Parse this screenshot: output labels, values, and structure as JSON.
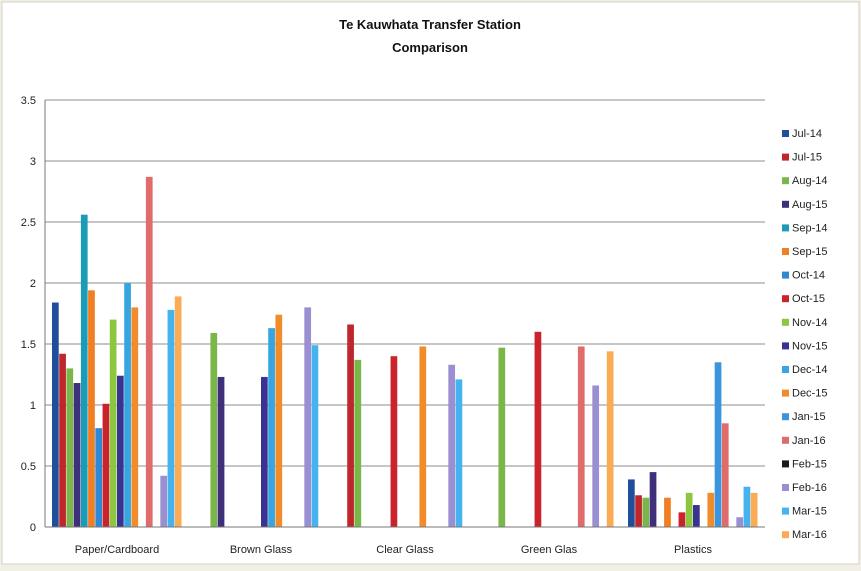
{
  "chart_data": {
    "type": "bar",
    "title": "Te Kauwhata Transfer Station",
    "subtitle": "Comparison",
    "xlabel": "",
    "ylabel": "",
    "ylim": [
      0,
      3.5
    ],
    "yticks": [
      "0",
      "0.5",
      "1",
      "1.5",
      "2",
      "2.5",
      "3",
      "3.5"
    ],
    "ytick_values": [
      0,
      0.5,
      1,
      1.5,
      2,
      2.5,
      3,
      3.5
    ],
    "grid": true,
    "legend_position": "right",
    "categories": [
      "Paper/Cardboard",
      "Brown Glass",
      "Clear Glass",
      "Green Glas",
      "Plastics"
    ],
    "series": [
      {
        "name": "Jul-14",
        "color": "#1f4e9a",
        "values": [
          1.84,
          0,
          0,
          0,
          0.39
        ]
      },
      {
        "name": "Jul-15",
        "color": "#c0272d",
        "values": [
          1.42,
          0,
          1.66,
          0,
          0.26
        ]
      },
      {
        "name": "Aug-14",
        "color": "#7ab648",
        "values": [
          1.3,
          1.59,
          1.37,
          1.47,
          0.24
        ]
      },
      {
        "name": "Aug-15",
        "color": "#3d2f7a",
        "values": [
          1.18,
          1.23,
          0,
          0,
          0.45
        ]
      },
      {
        "name": "Sep-14",
        "color": "#1b9bb8",
        "values": [
          2.56,
          0,
          0,
          0,
          0
        ]
      },
      {
        "name": "Sep-15",
        "color": "#f07f22",
        "values": [
          1.94,
          0,
          0,
          0,
          0.24
        ]
      },
      {
        "name": "Oct-14",
        "color": "#2d88d6",
        "values": [
          0.81,
          0,
          0,
          0,
          0
        ]
      },
      {
        "name": "Oct-15",
        "color": "#c9242b",
        "values": [
          1.01,
          0,
          1.4,
          1.6,
          0.12
        ]
      },
      {
        "name": "Nov-14",
        "color": "#8dc63f",
        "values": [
          1.7,
          0,
          0,
          0,
          0.28
        ]
      },
      {
        "name": "Nov-15",
        "color": "#3a3391",
        "values": [
          1.24,
          1.23,
          0,
          0,
          0.18
        ]
      },
      {
        "name": "Dec-14",
        "color": "#37a5e0",
        "values": [
          2.0,
          1.63,
          0,
          0,
          0
        ]
      },
      {
        "name": "Dec-15",
        "color": "#f28b2a",
        "values": [
          1.8,
          1.74,
          1.48,
          0,
          0.28
        ]
      },
      {
        "name": "Jan-15",
        "color": "#3b95dd",
        "values": [
          0,
          0,
          0,
          0,
          1.35
        ]
      },
      {
        "name": "Jan-16",
        "color": "#e06b6b",
        "values": [
          2.87,
          0,
          0,
          1.48,
          0.85
        ]
      },
      {
        "name": "Feb-15",
        "color": "#1a1a1a",
        "values": [
          0,
          0,
          0,
          0,
          0
        ]
      },
      {
        "name": "Feb-16",
        "color": "#9a8fd0",
        "values": [
          0.42,
          1.8,
          1.33,
          1.16,
          0.08
        ]
      },
      {
        "name": "Mar-15",
        "color": "#45b4ee",
        "values": [
          1.78,
          1.49,
          1.21,
          0,
          0.33
        ]
      },
      {
        "name": "Mar-16",
        "color": "#fbaa55",
        "values": [
          1.89,
          0,
          0,
          1.44,
          0.28
        ]
      }
    ]
  }
}
